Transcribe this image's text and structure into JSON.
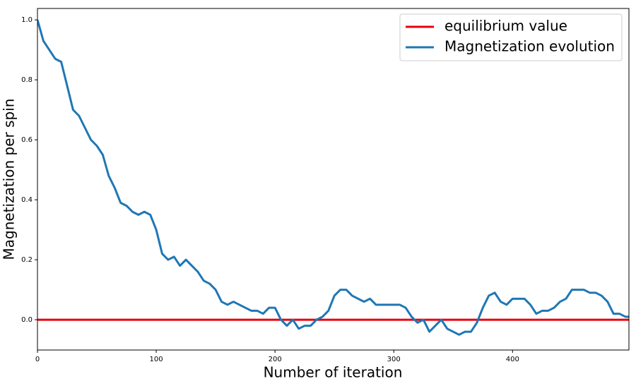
{
  "chart_data": {
    "type": "line",
    "xlabel": "Number of iteration",
    "ylabel": "Magnetization per spin",
    "xlim": [
      0,
      498
    ],
    "ylim": [
      -0.101,
      1.038
    ],
    "xticks": [
      0,
      100,
      200,
      300,
      400
    ],
    "yticks": [
      {
        "value": 0,
        "label": "0.0"
      },
      0.2,
      0.4,
      0.6,
      0.8,
      {
        "value": 1,
        "label": "1.0"
      }
    ],
    "grid": false,
    "legend": "upper right",
    "series": [
      {
        "name": "equilibrium value",
        "color": "#e8000b",
        "x": [
          0,
          498
        ],
        "values": [
          0,
          0
        ]
      },
      {
        "name": "Magnetization evolution",
        "color": "#1f77b4",
        "x": [
          0,
          5,
          10,
          15,
          20,
          25,
          30,
          35,
          40,
          45,
          50,
          55,
          60,
          65,
          70,
          75,
          80,
          85,
          90,
          95,
          100,
          105,
          110,
          115,
          120,
          125,
          130,
          135,
          140,
          145,
          150,
          155,
          160,
          165,
          170,
          175,
          180,
          185,
          190,
          195,
          200,
          205,
          210,
          215,
          220,
          225,
          230,
          235,
          240,
          245,
          250,
          255,
          260,
          265,
          270,
          275,
          280,
          285,
          290,
          295,
          300,
          305,
          310,
          315,
          320,
          325,
          330,
          335,
          340,
          345,
          350,
          355,
          360,
          365,
          370,
          375,
          380,
          385,
          390,
          395,
          400,
          405,
          410,
          415,
          420,
          425,
          430,
          435,
          440,
          445,
          450,
          455,
          460,
          465,
          470,
          475,
          480,
          485,
          490,
          495,
          498
        ],
        "values": [
          1.0,
          0.93,
          0.9,
          0.87,
          0.86,
          0.78,
          0.7,
          0.68,
          0.64,
          0.6,
          0.58,
          0.55,
          0.48,
          0.44,
          0.39,
          0.38,
          0.36,
          0.35,
          0.36,
          0.35,
          0.3,
          0.22,
          0.2,
          0.21,
          0.18,
          0.2,
          0.18,
          0.16,
          0.13,
          0.12,
          0.1,
          0.06,
          0.05,
          0.06,
          0.05,
          0.04,
          0.03,
          0.03,
          0.02,
          0.04,
          0.04,
          0.0,
          -0.02,
          0.0,
          -0.03,
          -0.02,
          -0.02,
          0.0,
          0.01,
          0.03,
          0.08,
          0.1,
          0.1,
          0.08,
          0.07,
          0.06,
          0.07,
          0.05,
          0.05,
          0.05,
          0.05,
          0.05,
          0.04,
          0.01,
          -0.01,
          0.0,
          -0.04,
          -0.02,
          0.0,
          -0.03,
          -0.04,
          -0.05,
          -0.04,
          -0.04,
          -0.01,
          0.04,
          0.08,
          0.09,
          0.06,
          0.05,
          0.07,
          0.07,
          0.07,
          0.05,
          0.02,
          0.03,
          0.03,
          0.04,
          0.06,
          0.07,
          0.1,
          0.1,
          0.1,
          0.09,
          0.09,
          0.08,
          0.06,
          0.02,
          0.02,
          0.01,
          0.01
        ]
      }
    ]
  }
}
